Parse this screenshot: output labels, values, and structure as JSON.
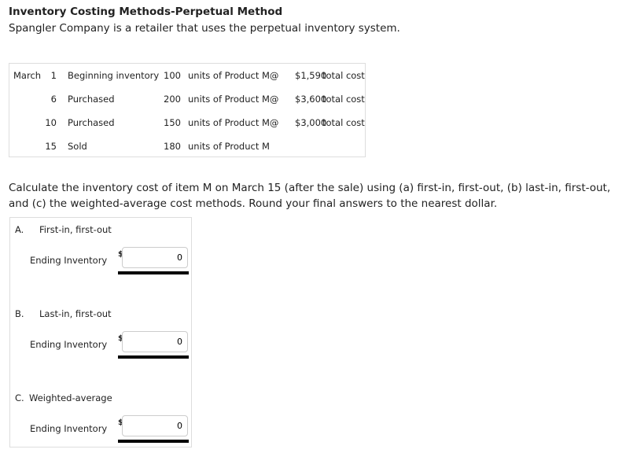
{
  "title": "Inventory Costing Methods-Perpetual Method",
  "subtitle": "Spangler Company is a retailer that uses the perpetual inventory system.",
  "table": {
    "month": "March",
    "rows": [
      {
        "day": "1",
        "event": "Beginning inventory",
        "units": "100",
        "desc": "units of Product M@",
        "cost": "$1,590",
        "suffix": "total cost"
      },
      {
        "day": "6",
        "event": "Purchased",
        "units": "200",
        "desc": "units of Product M@",
        "cost": "$3,600",
        "suffix": "total cost"
      },
      {
        "day": "10",
        "event": "Purchased",
        "units": "150",
        "desc": "units of Product M@",
        "cost": "$3,000",
        "suffix": "total cost"
      },
      {
        "day": "15",
        "event": "Sold",
        "units": "180",
        "desc": "units of Product M",
        "cost": "",
        "suffix": ""
      }
    ]
  },
  "question": "Calculate the inventory cost of item M on March 15 (after the sale) using (a) first-in, first-out, (b) last-in, first-out, and (c) the weighted-average cost methods. Round your final answers to the nearest dollar.",
  "answers": [
    {
      "letter": "A.",
      "method": "First-in, first-out",
      "label": "Ending Inventory",
      "currency": "$",
      "value": "0"
    },
    {
      "letter": "B.",
      "method": "Last-in, first-out",
      "label": "Ending Inventory",
      "currency": "$",
      "value": "0"
    },
    {
      "letter": "C.",
      "method": "Weighted-average",
      "label": "Ending Inventory",
      "currency": "$",
      "value": "0"
    }
  ]
}
